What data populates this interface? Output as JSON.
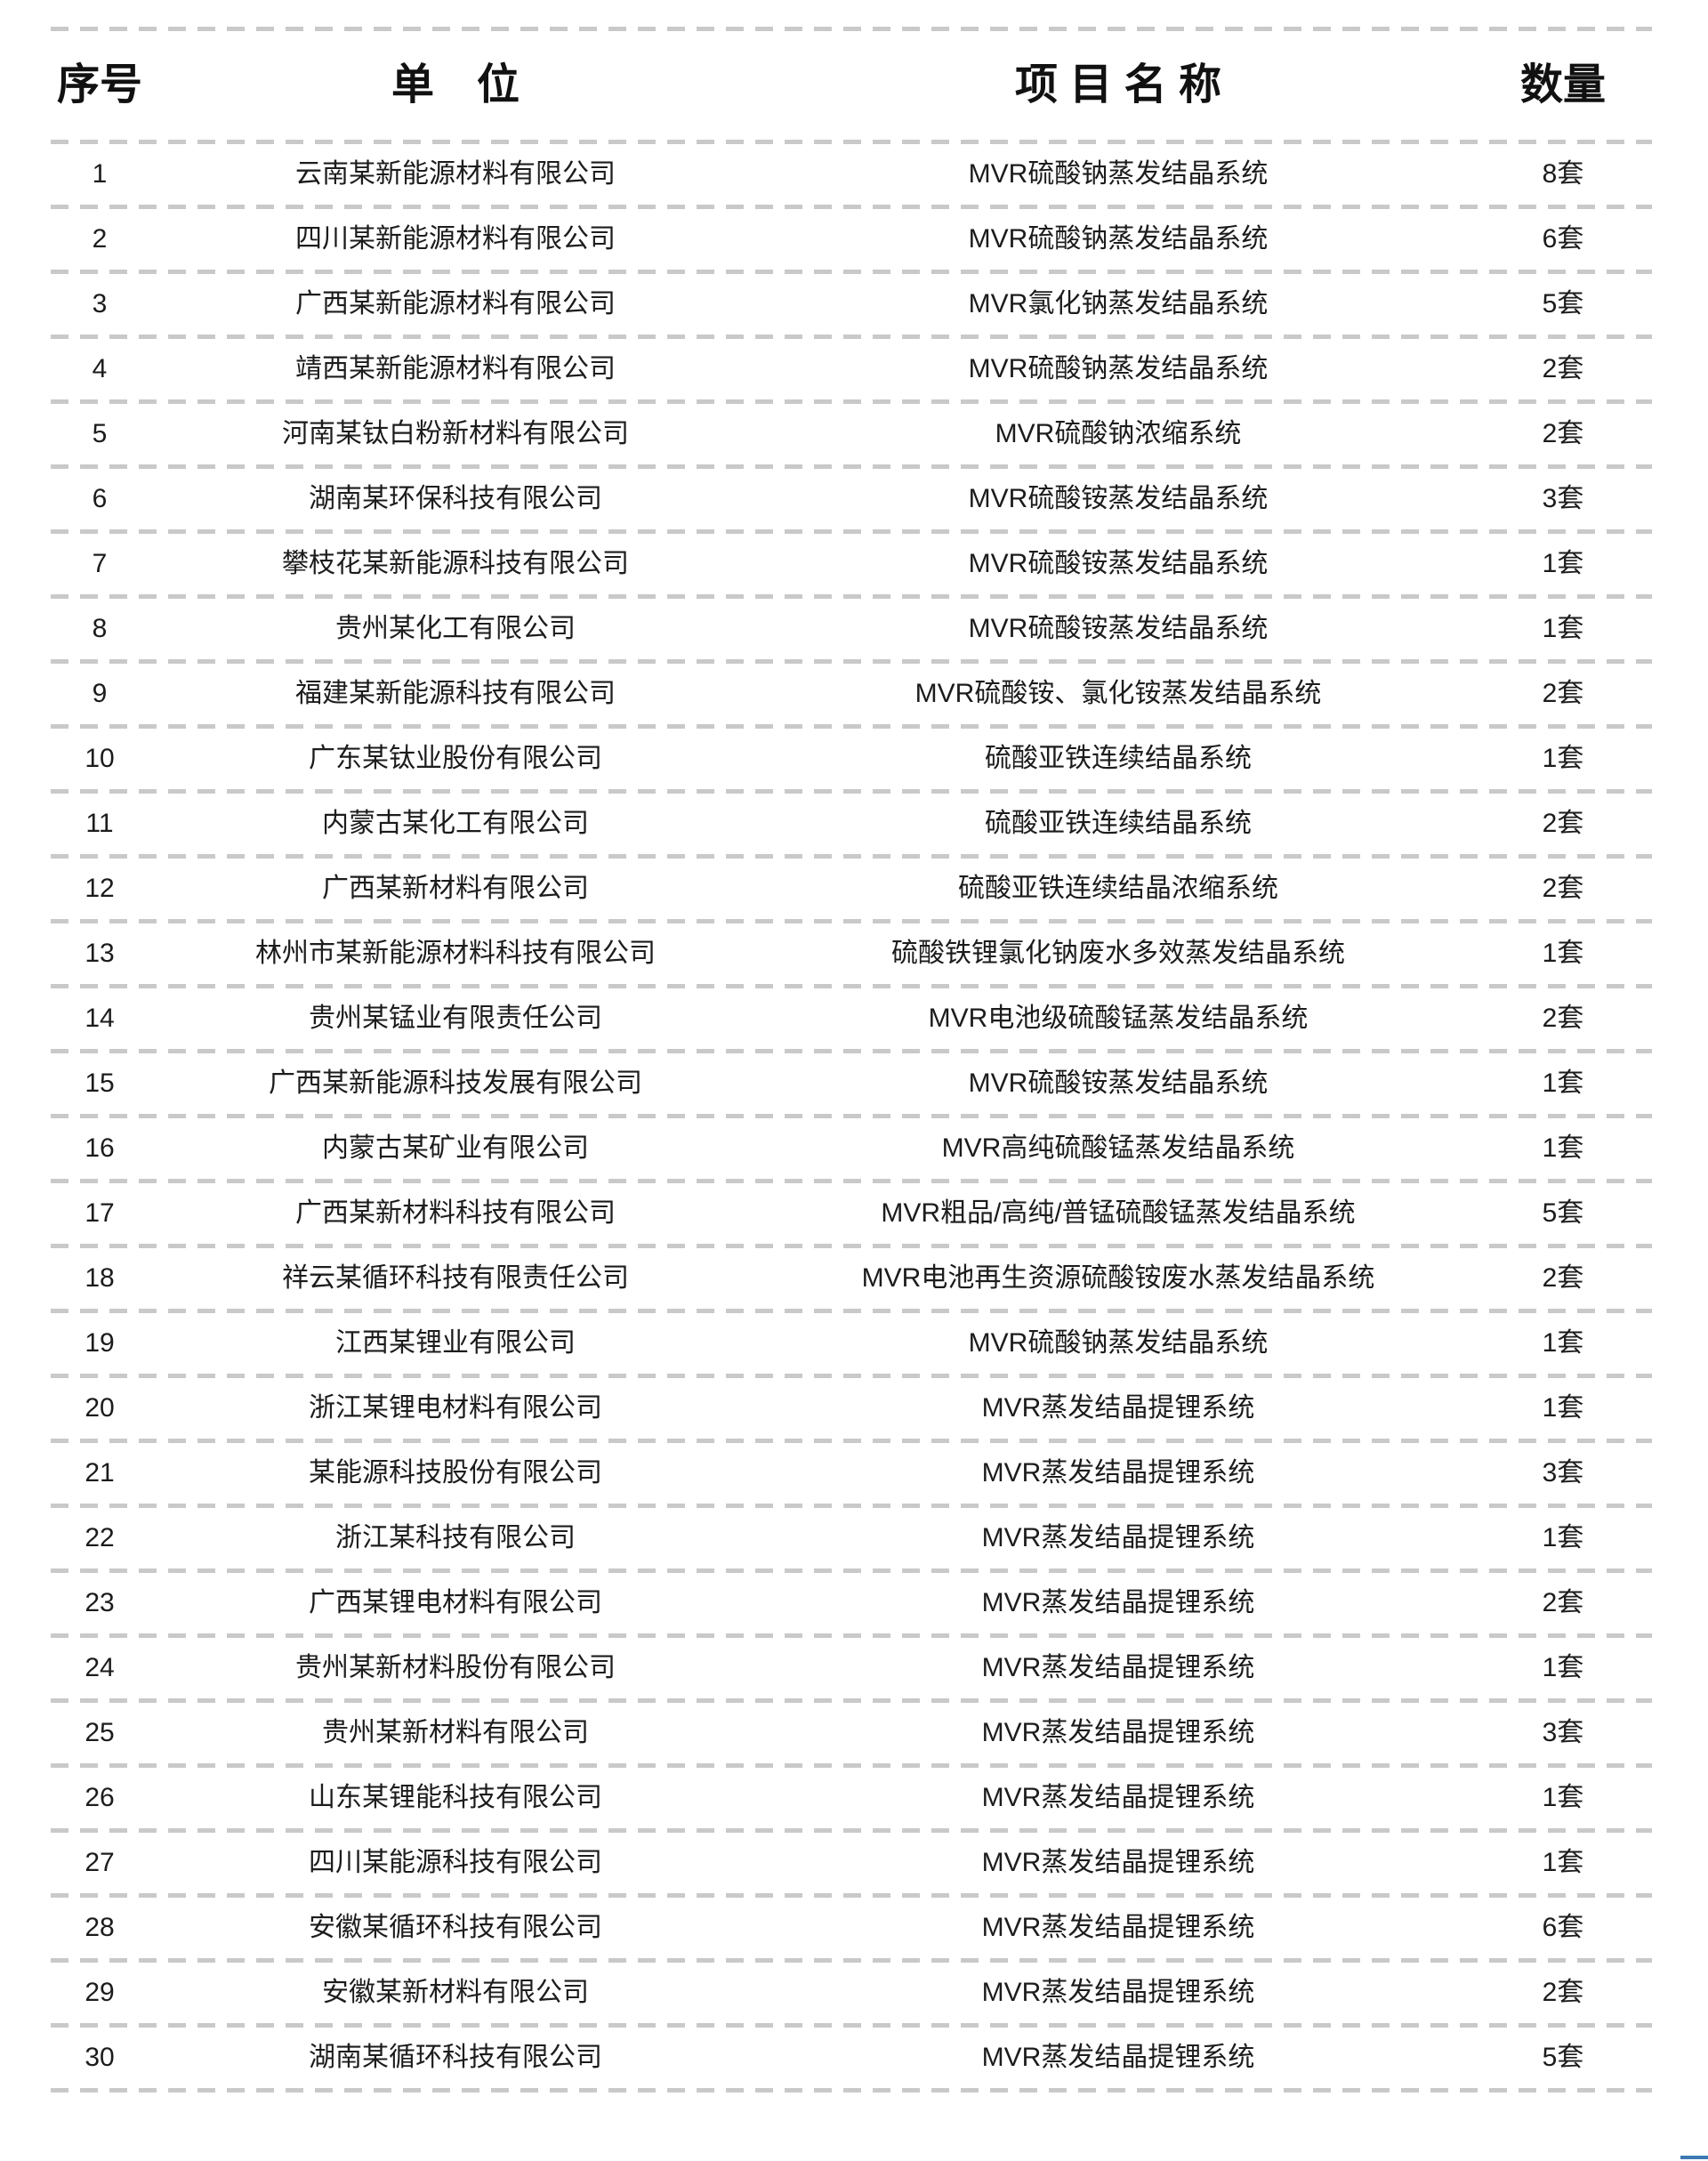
{
  "table": {
    "columns": [
      "序号",
      "单　位",
      "项 目 名 称",
      "数量"
    ],
    "rows": [
      {
        "no": "1",
        "unit": "云南某新能源材料有限公司",
        "project": "MVR硫酸钠蒸发结晶系统",
        "qty": "8套"
      },
      {
        "no": "2",
        "unit": "四川某新能源材料有限公司",
        "project": "MVR硫酸钠蒸发结晶系统",
        "qty": "6套"
      },
      {
        "no": "3",
        "unit": "广西某新能源材料有限公司",
        "project": "MVR氯化钠蒸发结晶系统",
        "qty": "5套"
      },
      {
        "no": "4",
        "unit": "靖西某新能源材料有限公司",
        "project": "MVR硫酸钠蒸发结晶系统",
        "qty": "2套"
      },
      {
        "no": "5",
        "unit": "河南某钛白粉新材料有限公司",
        "project": "MVR硫酸钠浓缩系统",
        "qty": "2套"
      },
      {
        "no": "6",
        "unit": "湖南某环保科技有限公司",
        "project": "MVR硫酸铵蒸发结晶系统",
        "qty": "3套"
      },
      {
        "no": "7",
        "unit": "攀枝花某新能源科技有限公司",
        "project": "MVR硫酸铵蒸发结晶系统",
        "qty": "1套"
      },
      {
        "no": "8",
        "unit": "贵州某化工有限公司",
        "project": "MVR硫酸铵蒸发结晶系统",
        "qty": "1套"
      },
      {
        "no": "9",
        "unit": "福建某新能源科技有限公司",
        "project": "MVR硫酸铵、氯化铵蒸发结晶系统",
        "qty": "2套"
      },
      {
        "no": "10",
        "unit": "广东某钛业股份有限公司",
        "project": "硫酸亚铁连续结晶系统",
        "qty": "1套"
      },
      {
        "no": "11",
        "unit": "内蒙古某化工有限公司",
        "project": "硫酸亚铁连续结晶系统",
        "qty": "2套"
      },
      {
        "no": "12",
        "unit": "广西某新材料有限公司",
        "project": "硫酸亚铁连续结晶浓缩系统",
        "qty": "2套"
      },
      {
        "no": "13",
        "unit": "林州市某新能源材料科技有限公司",
        "project": "硫酸铁锂氯化钠废水多效蒸发结晶系统",
        "qty": "1套"
      },
      {
        "no": "14",
        "unit": "贵州某锰业有限责任公司",
        "project": "MVR电池级硫酸锰蒸发结晶系统",
        "qty": "2套"
      },
      {
        "no": "15",
        "unit": "广西某新能源科技发展有限公司",
        "project": "MVR硫酸铵蒸发结晶系统",
        "qty": "1套"
      },
      {
        "no": "16",
        "unit": "内蒙古某矿业有限公司",
        "project": "MVR高纯硫酸锰蒸发结晶系统",
        "qty": "1套"
      },
      {
        "no": "17",
        "unit": "广西某新材料科技有限公司",
        "project": "MVR粗品/高纯/普锰硫酸锰蒸发结晶系统",
        "qty": "5套"
      },
      {
        "no": "18",
        "unit": "祥云某循环科技有限责任公司",
        "project": "MVR电池再生资源硫酸铵废水蒸发结晶系统",
        "qty": "2套"
      },
      {
        "no": "19",
        "unit": "江西某锂业有限公司",
        "project": "MVR硫酸钠蒸发结晶系统",
        "qty": "1套"
      },
      {
        "no": "20",
        "unit": "浙江某锂电材料有限公司",
        "project": "MVR蒸发结晶提锂系统",
        "qty": "1套"
      },
      {
        "no": "21",
        "unit": "某能源科技股份有限公司",
        "project": "MVR蒸发结晶提锂系统",
        "qty": "3套"
      },
      {
        "no": "22",
        "unit": "浙江某科技有限公司",
        "project": "MVR蒸发结晶提锂系统",
        "qty": "1套"
      },
      {
        "no": "23",
        "unit": "广西某锂电材料有限公司",
        "project": "MVR蒸发结晶提锂系统",
        "qty": "2套"
      },
      {
        "no": "24",
        "unit": "贵州某新材料股份有限公司",
        "project": "MVR蒸发结晶提锂系统",
        "qty": "1套"
      },
      {
        "no": "25",
        "unit": "贵州某新材料有限公司",
        "project": "MVR蒸发结晶提锂系统",
        "qty": "3套"
      },
      {
        "no": "26",
        "unit": "山东某锂能科技有限公司",
        "project": "MVR蒸发结晶提锂系统",
        "qty": "1套"
      },
      {
        "no": "27",
        "unit": "四川某能源科技有限公司",
        "project": "MVR蒸发结晶提锂系统",
        "qty": "1套"
      },
      {
        "no": "28",
        "unit": "安徽某循环科技有限公司",
        "project": "MVR蒸发结晶提锂系统",
        "qty": "6套"
      },
      {
        "no": "29",
        "unit": "安徽某新材料有限公司",
        "project": "MVR蒸发结晶提锂系统",
        "qty": "2套"
      },
      {
        "no": "30",
        "unit": "湖南某循环科技有限公司",
        "project": "MVR蒸发结晶提锂系统",
        "qty": "5套"
      }
    ]
  },
  "colors": {
    "divider": "#c9c9c9",
    "text": "#1c1c1c",
    "accent_strip": "#3d79b3"
  }
}
